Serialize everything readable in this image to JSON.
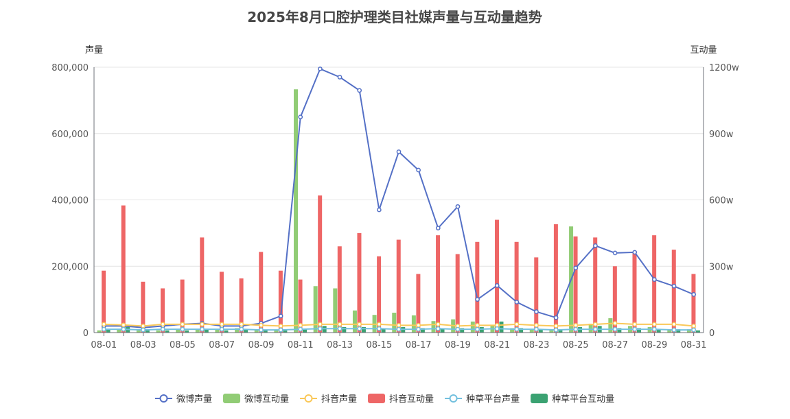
{
  "chart_data": {
    "type": "bar",
    "title": "2025年8月口腔护理类目社媒声量与互动量趋势",
    "y_left": {
      "name": "声量",
      "min": 0,
      "max": 800000,
      "ticks": [
        "0",
        "200,000",
        "400,000",
        "600,000",
        "800,000"
      ]
    },
    "y_right": {
      "name": "互动量",
      "min": 0,
      "max": 12000000,
      "ticks": [
        "0",
        "300w",
        "600w",
        "900w",
        "1200w"
      ]
    },
    "categories": [
      "08-01",
      "08-02",
      "08-03",
      "08-04",
      "08-05",
      "08-06",
      "08-07",
      "08-08",
      "08-09",
      "08-10",
      "08-11",
      "08-12",
      "08-13",
      "08-14",
      "08-15",
      "08-16",
      "08-17",
      "08-18",
      "08-19",
      "08-20",
      "08-21",
      "08-22",
      "08-23",
      "08-24",
      "08-25",
      "08-26",
      "08-27",
      "08-28",
      "08-29",
      "08-30",
      "08-31"
    ],
    "x_tick_labels": [
      "08-01",
      "08-03",
      "08-05",
      "08-07",
      "08-09",
      "08-11",
      "08-13",
      "08-15",
      "08-17",
      "08-19",
      "08-21",
      "08-23",
      "08-25",
      "08-27",
      "08-29",
      "08-31"
    ],
    "series": [
      {
        "name": "微博声量",
        "type": "line",
        "axis": "left",
        "color": "#5470c6",
        "values": [
          20000,
          20000,
          15000,
          20000,
          25000,
          28000,
          20000,
          20000,
          28000,
          50000,
          650000,
          795000,
          770000,
          730000,
          370000,
          545000,
          490000,
          315000,
          380000,
          100000,
          142000,
          92000,
          63000,
          45000,
          195000,
          262000,
          240000,
          242000,
          160000,
          140000,
          115000
        ]
      },
      {
        "name": "微博互动量",
        "type": "bar",
        "axis": "right",
        "color": "#91cc75",
        "values": [
          100000,
          150000,
          100000,
          100000,
          150000,
          150000,
          150000,
          200000,
          150000,
          100000,
          11000000,
          2100000,
          2000000,
          1000000,
          800000,
          900000,
          780000,
          520000,
          600000,
          500000,
          300000,
          200000,
          150000,
          150000,
          4800000,
          400000,
          650000,
          300000,
          250000,
          150000,
          150000
        ]
      },
      {
        "name": "抖音声量",
        "type": "line",
        "axis": "left",
        "color": "#fac858",
        "values": [
          25000,
          23000,
          20000,
          25000,
          25000,
          25000,
          25000,
          25000,
          22000,
          20000,
          22000,
          25000,
          25000,
          25000,
          25000,
          22000,
          22000,
          25000,
          20000,
          22000,
          22000,
          25000,
          22000,
          20000,
          22000,
          25000,
          28000,
          25000,
          25000,
          25000,
          20000
        ]
      },
      {
        "name": "抖音互动量",
        "type": "bar",
        "axis": "right",
        "color": "#ee6666",
        "values": [
          2800000,
          5750000,
          2300000,
          2000000,
          2400000,
          4300000,
          2750000,
          2450000,
          3650000,
          2800000,
          2400000,
          6200000,
          3900000,
          4500000,
          3450000,
          4200000,
          2650000,
          4400000,
          3550000,
          4100000,
          5100000,
          4100000,
          3400000,
          4900000,
          4350000,
          4300000,
          3000000,
          3600000,
          4400000,
          3750000,
          2650000
        ]
      },
      {
        "name": "种草平台声量",
        "type": "line",
        "axis": "left",
        "color": "#73c0de",
        "values": [
          10000,
          10000,
          8000,
          10000,
          10000,
          10000,
          10000,
          10000,
          8000,
          8000,
          10000,
          12000,
          12000,
          12000,
          12000,
          10000,
          10000,
          12000,
          10000,
          10000,
          12000,
          10000,
          10000,
          8000,
          10000,
          10000,
          10000,
          10000,
          10000,
          8000,
          8000
        ]
      },
      {
        "name": "种草平台互动量",
        "type": "bar",
        "axis": "right",
        "color": "#3ba272",
        "values": [
          150000,
          250000,
          100000,
          100000,
          100000,
          150000,
          100000,
          150000,
          100000,
          100000,
          150000,
          300000,
          250000,
          250000,
          200000,
          250000,
          200000,
          200000,
          200000,
          250000,
          500000,
          200000,
          150000,
          150000,
          250000,
          300000,
          200000,
          200000,
          150000,
          150000,
          100000
        ]
      }
    ]
  }
}
